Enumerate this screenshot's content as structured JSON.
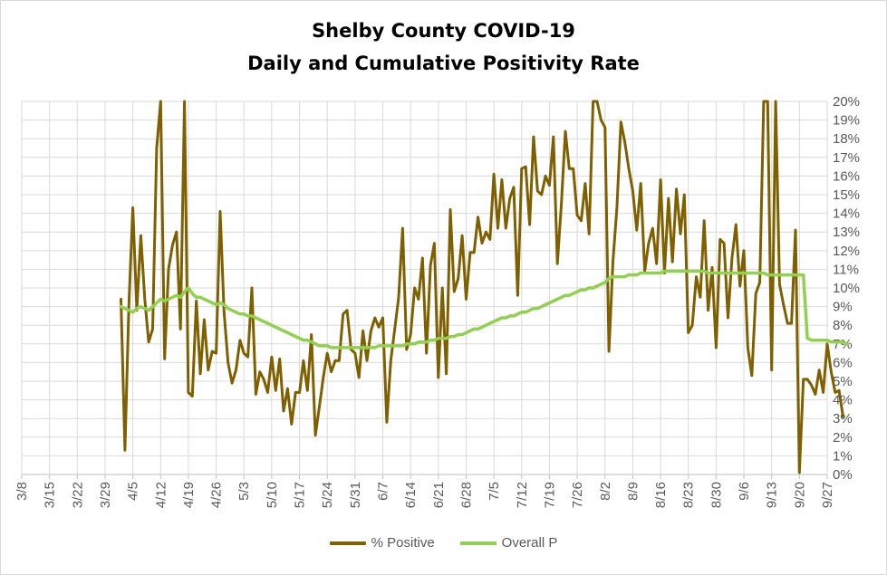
{
  "chart_data": {
    "type": "line",
    "title": "Shelby County COVID-19",
    "subtitle": "Daily and Cumulative Positivity Rate",
    "x_ticks": [
      "3/8",
      "3/15",
      "3/22",
      "3/29",
      "4/5",
      "4/12",
      "4/19",
      "4/26",
      "5/3",
      "5/10",
      "5/17",
      "5/24",
      "5/31",
      "6/7",
      "6/14",
      "6/21",
      "6/28",
      "7/5",
      "7/12",
      "7/19",
      "7/26",
      "8/2",
      "8/9",
      "8/16",
      "8/23",
      "8/30",
      "9/6",
      "9/13",
      "9/20",
      "9/27"
    ],
    "y_ticks": [
      "0%",
      "1%",
      "2%",
      "3%",
      "4%",
      "5%",
      "6%",
      "7%",
      "8%",
      "9%",
      "10%",
      "11%",
      "12%",
      "13%",
      "14%",
      "15%",
      "16%",
      "17%",
      "18%",
      "19%",
      "20%"
    ],
    "ylim": [
      0,
      20
    ],
    "y_axis_position": "right",
    "grid": true,
    "legend_position": "bottom",
    "series": [
      {
        "name": "% Positive",
        "color": "#7f6000",
        "start_date": "4/2",
        "values": [
          9.4,
          1.3,
          9.0,
          14.3,
          8.8,
          12.8,
          9.4,
          7.1,
          7.8,
          17.5,
          20.0,
          6.2,
          11.0,
          12.3,
          13.0,
          7.8,
          20.0,
          4.4,
          4.2,
          9.3,
          5.4,
          8.3,
          5.6,
          6.6,
          6.5,
          14.1,
          8.7,
          6.0,
          4.9,
          5.6,
          7.2,
          6.5,
          6.3,
          10.0,
          4.3,
          5.5,
          5.1,
          4.4,
          6.3,
          4.5,
          6.2,
          3.4,
          4.6,
          2.7,
          4.4,
          4.4,
          6.1,
          4.5,
          7.5,
          2.1,
          3.6,
          5.2,
          6.5,
          5.5,
          6.1,
          6.1,
          8.6,
          8.8,
          6.7,
          6.5,
          5.2,
          7.7,
          6.1,
          7.7,
          8.4,
          7.9,
          8.4,
          2.8,
          6.1,
          7.8,
          9.5,
          13.2,
          6.7,
          7.5,
          10.0,
          9.4,
          11.6,
          6.5,
          11.2,
          12.4,
          5.2,
          10.0,
          5.4,
          14.2,
          9.8,
          10.5,
          12.8,
          9.4,
          11.9,
          11.9,
          13.8,
          12.4,
          13.0,
          12.6,
          16.1,
          13.2,
          15.8,
          13.2,
          14.8,
          15.4,
          9.6,
          16.4,
          16.5,
          13.4,
          18.1,
          15.2,
          15.0,
          16.0,
          15.5,
          18.1,
          11.3,
          14.5,
          18.4,
          16.4,
          16.4,
          13.9,
          13.6,
          15.6,
          12.9,
          20.0,
          20.0,
          19.0,
          18.6,
          6.6,
          11.4,
          14.3,
          18.9,
          17.8,
          16.4,
          15.2,
          13.1,
          15.6,
          10.9,
          12.4,
          13.2,
          11.3,
          15.8,
          10.8,
          14.8,
          11.4,
          15.3,
          12.9,
          15.0,
          7.6,
          8.0,
          10.6,
          9.5,
          13.6,
          8.8,
          11.1,
          6.8,
          12.6,
          12.4,
          8.4,
          11.6,
          13.4,
          10.1,
          12.0,
          6.8,
          5.3,
          9.7,
          10.3,
          20.0,
          20.0,
          5.6,
          20.0,
          10.2,
          9.1,
          8.1,
          8.1,
          13.1,
          0.1,
          5.1,
          5.1,
          4.8,
          4.3,
          5.6,
          4.4,
          7.0,
          5.5,
          4.4,
          4.5,
          3.1
        ]
      },
      {
        "name": "Overall P",
        "color": "#92d050",
        "start_date": "4/2",
        "values": [
          9.0,
          8.9,
          8.8,
          8.7,
          8.9,
          9.0,
          8.9,
          8.8,
          9.0,
          9.2,
          9.4,
          9.3,
          9.4,
          9.5,
          9.6,
          9.5,
          9.8,
          10.0,
          9.7,
          9.5,
          9.5,
          9.4,
          9.3,
          9.2,
          9.1,
          9.2,
          9.1,
          8.9,
          8.8,
          8.7,
          8.6,
          8.6,
          8.5,
          8.5,
          8.4,
          8.3,
          8.2,
          8.1,
          8.0,
          7.9,
          7.8,
          7.7,
          7.6,
          7.5,
          7.4,
          7.3,
          7.2,
          7.2,
          7.1,
          7.0,
          6.9,
          6.9,
          6.9,
          6.8,
          6.8,
          6.8,
          6.8,
          6.8,
          6.8,
          6.8,
          6.8,
          6.8,
          6.8,
          6.8,
          6.8,
          6.9,
          6.9,
          6.9,
          6.9,
          6.9,
          6.9,
          6.9,
          7.0,
          7.0,
          7.0,
          7.1,
          7.1,
          7.1,
          7.2,
          7.2,
          7.3,
          7.3,
          7.3,
          7.4,
          7.4,
          7.5,
          7.5,
          7.6,
          7.7,
          7.8,
          7.8,
          7.9,
          8.0,
          8.1,
          8.2,
          8.3,
          8.4,
          8.4,
          8.5,
          8.5,
          8.6,
          8.7,
          8.7,
          8.8,
          8.9,
          8.9,
          9.0,
          9.1,
          9.2,
          9.3,
          9.4,
          9.5,
          9.6,
          9.6,
          9.7,
          9.8,
          9.9,
          9.9,
          10.0,
          10.0,
          10.1,
          10.2,
          10.3,
          10.5,
          10.6,
          10.6,
          10.6,
          10.6,
          10.7,
          10.7,
          10.7,
          10.8,
          10.8,
          10.8,
          10.8,
          10.8,
          10.8,
          10.9,
          10.9,
          10.9,
          10.9,
          10.9,
          10.9,
          10.9,
          10.9,
          10.9,
          10.9,
          10.9,
          10.8,
          10.8,
          10.8,
          10.8,
          10.8,
          10.8,
          10.8,
          10.8,
          10.8,
          10.8,
          10.8,
          10.8,
          10.8,
          10.8,
          10.8,
          10.7,
          10.7,
          10.7,
          10.7,
          10.7,
          10.7,
          10.7,
          10.7,
          10.7,
          10.7,
          7.3,
          7.2,
          7.2,
          7.2,
          7.2,
          7.2,
          7.1,
          7.1,
          7.1,
          7.1,
          7.0
        ]
      }
    ]
  }
}
